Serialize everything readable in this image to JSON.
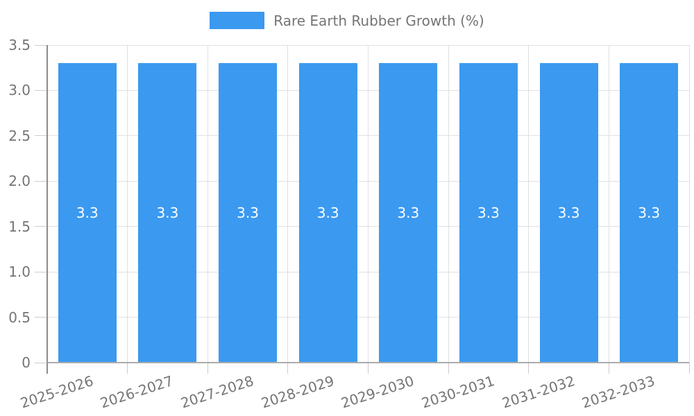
{
  "colors": {
    "background": "#FFFFFF",
    "bar": "#3B99F0",
    "grid_line": "#E0E0E0",
    "tick_line": "#CCCCCC",
    "y_axis_line": "#8C8C8C",
    "x_axis_line": "#ABABAB",
    "axis_text": "#757575",
    "bar_label_text": "#FFFFFF"
  },
  "legend": {
    "label": "Rare Earth Rubber Growth (%)",
    "swatch_color": "#3B99F0"
  },
  "chart_data": {
    "type": "bar",
    "series_name": "Rare Earth Rubber Growth (%)",
    "categories": [
      "2025-2026",
      "2026-2027",
      "2027-2028",
      "2028-2029",
      "2029-2030",
      "2030-2031",
      "2031-2032",
      "2032-2033"
    ],
    "values": [
      3.3,
      3.3,
      3.3,
      3.3,
      3.3,
      3.3,
      3.3,
      3.3
    ],
    "bar_labels": [
      "3.3",
      "3.3",
      "3.3",
      "3.3",
      "3.3",
      "3.3",
      "3.3",
      "3.3"
    ],
    "title": "",
    "xlabel": "",
    "ylabel": "",
    "ylim": [
      0,
      3.5
    ],
    "y_tick_labels": [
      "0",
      "0.5",
      "1.0",
      "1.5",
      "2.0",
      "2.5",
      "3.0",
      "3.5"
    ],
    "grid": true,
    "legend_position": "top",
    "value_label_position": "inside-center",
    "x_label_rotation_deg": -18
  }
}
